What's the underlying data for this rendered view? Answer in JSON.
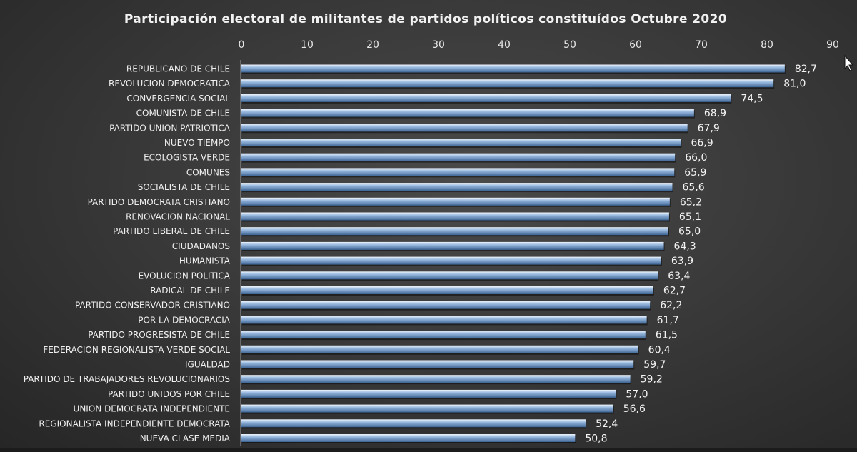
{
  "colors": {
    "bar_top": "#eef4fb",
    "bar_mid": "#9bbbe0",
    "bar_bottom": "#3d6494",
    "axis": "#9a9a9a",
    "text": "#f0f0f0"
  },
  "chart_data": {
    "type": "bar",
    "orientation": "horizontal",
    "title": "Participación electoral de militantes de partidos políticos constituídos Octubre 2020",
    "xlabel": "",
    "ylabel": "",
    "xlim": [
      0,
      90
    ],
    "x_ticks": [
      "0",
      "10",
      "20",
      "30",
      "40",
      "50",
      "60",
      "70",
      "80",
      "90"
    ],
    "x_tick_values": [
      0,
      10,
      20,
      30,
      40,
      50,
      60,
      70,
      80,
      90
    ],
    "axis_position": "top",
    "grid": false,
    "categories": [
      "REPUBLICANO DE CHILE",
      "REVOLUCION DEMOCRATICA",
      "CONVERGENCIA SOCIAL",
      "COMUNISTA DE CHILE",
      "PARTIDO UNION PATRIOTICA",
      "NUEVO TIEMPO",
      "ECOLOGISTA VERDE",
      "COMUNES",
      "SOCIALISTA DE CHILE",
      "PARTIDO DEMOCRATA CRISTIANO",
      "RENOVACION NACIONAL",
      "PARTIDO LIBERAL DE CHILE",
      "CIUDADANOS",
      "HUMANISTA",
      "EVOLUCION POLITICA",
      "RADICAL DE CHILE",
      "PARTIDO CONSERVADOR CRISTIANO",
      "POR LA DEMOCRACIA",
      "PARTIDO PROGRESISTA DE CHILE",
      "FEDERACION REGIONALISTA VERDE SOCIAL",
      "IGUALDAD",
      "PARTIDO DE TRABAJADORES REVOLUCIONARIOS",
      "PARTIDO UNIDOS POR CHILE",
      "UNION DEMOCRATA INDEPENDIENTE",
      "REGIONALISTA INDEPENDIENTE DEMOCRATA",
      "NUEVA CLASE MEDIA"
    ],
    "values": [
      82.7,
      81.0,
      74.5,
      68.9,
      67.9,
      66.9,
      66.0,
      65.9,
      65.6,
      65.2,
      65.1,
      65.0,
      64.3,
      63.9,
      63.4,
      62.7,
      62.2,
      61.7,
      61.5,
      60.4,
      59.7,
      59.2,
      57.0,
      56.6,
      52.4,
      50.8
    ],
    "value_labels": [
      "82,7",
      "81,0",
      "74,5",
      "68,9",
      "67,9",
      "66,9",
      "66,0",
      "65,9",
      "65,6",
      "65,2",
      "65,1",
      "65,0",
      "64,3",
      "63,9",
      "63,4",
      "62,7",
      "62,2",
      "61,7",
      "61,5",
      "60,4",
      "59,7",
      "59,2",
      "57,0",
      "56,6",
      "52,4",
      "50,8"
    ]
  }
}
